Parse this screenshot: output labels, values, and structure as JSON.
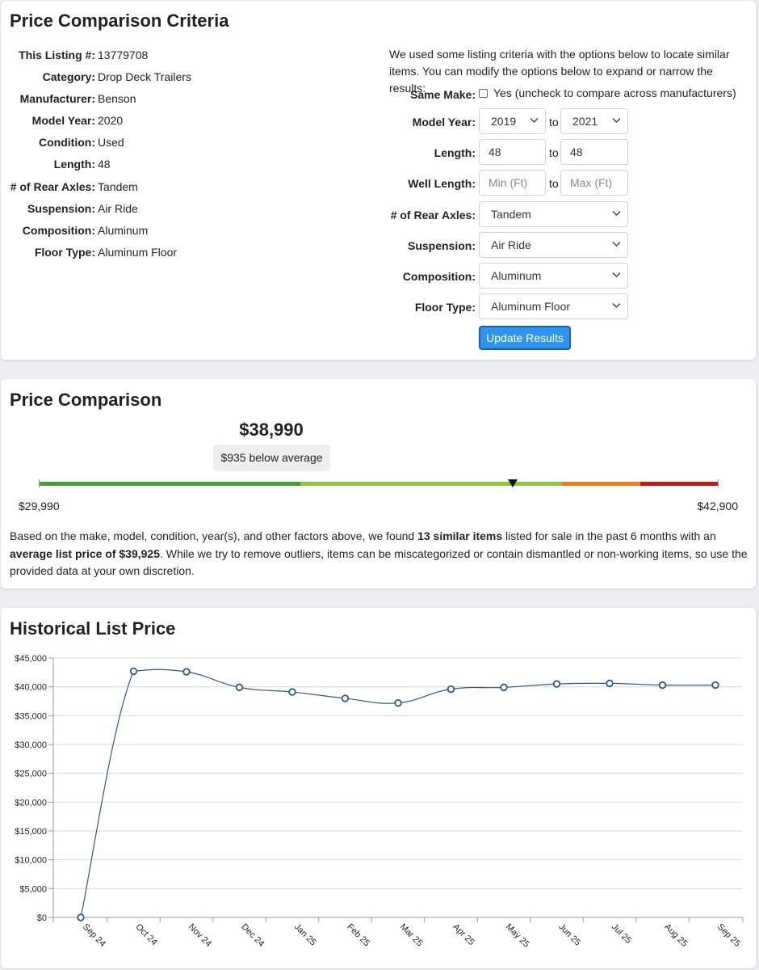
{
  "criteria": {
    "title": "Price Comparison Criteria",
    "listing": [
      {
        "label": "This Listing #:",
        "value": "13779708"
      },
      {
        "label": "Category:",
        "value": "Drop Deck Trailers"
      },
      {
        "label": "Manufacturer:",
        "value": "Benson"
      },
      {
        "label": "Model Year:",
        "value": "2020"
      },
      {
        "label": "Condition:",
        "value": "Used"
      },
      {
        "label": "Length:",
        "value": "48"
      },
      {
        "label": "# of Rear Axles:",
        "value": "Tandem"
      },
      {
        "label": "Suspension:",
        "value": "Air Ride"
      },
      {
        "label": "Composition:",
        "value": "Aluminum"
      },
      {
        "label": "Floor Type:",
        "value": "Aluminum Floor"
      }
    ],
    "intro": "We used some listing criteria with the options below to locate similar items. You can modify the options below to expand or narrow the results:",
    "form": {
      "same_make_label": "Same Make:",
      "same_make_checked": false,
      "same_make_text": "Yes (uncheck to compare across manufacturers)",
      "model_year_label": "Model Year:",
      "model_year_from": "2019",
      "model_year_to": "2021",
      "to_text": "to",
      "length_label": "Length:",
      "length_from": "48",
      "length_to": "48",
      "well_length_label": "Well Length:",
      "well_length_min_placeholder": "Min (Ft)",
      "well_length_max_placeholder": "Max (Ft)",
      "rear_axles_label": "# of Rear Axles:",
      "rear_axles_value": "Tandem",
      "suspension_label": "Suspension:",
      "suspension_value": "Air Ride",
      "composition_label": "Composition:",
      "composition_value": "Aluminum",
      "floor_type_label": "Floor Type:",
      "floor_type_value": "Aluminum Floor",
      "update_button": "Update Results"
    }
  },
  "comparison": {
    "title": "Price Comparison",
    "price": "$38,990",
    "badge": "$935 below average",
    "min_label": "$29,990",
    "max_label": "$42,900",
    "marker_fraction": 0.697,
    "bar_colors": [
      "#4a9b3b",
      "#8cc63f",
      "#ee7d1e",
      "#c21a1a"
    ],
    "text_1": "Based on the make, model, condition, year(s), and other factors above, we found ",
    "text_bold_1": "13 similar items",
    "text_2": " listed for sale in the past 6 months with an ",
    "text_bold_2": "average list price of $39,925",
    "text_3": ". While we try to remove outliers, items can be miscategorized or contain dismantled or non-working items, so use the provided data at your own discretion."
  },
  "history": {
    "title": "Historical List Price"
  },
  "chart_data": {
    "type": "line",
    "title": "Historical List Price",
    "categories": [
      "Sep 24",
      "Oct 24",
      "Nov 24",
      "Dec 24",
      "Jan 25",
      "Feb 25",
      "Mar 25",
      "Apr 25",
      "May 25",
      "Jun 25",
      "Jul 25",
      "Aug 25",
      "Sep 25"
    ],
    "values": [
      0,
      42700,
      42600,
      39900,
      39100,
      38000,
      37200,
      39600,
      39900,
      40500,
      40600,
      40300,
      40300
    ],
    "ylim": [
      0,
      45000
    ],
    "yticks": [
      "$0",
      "$5,000",
      "$10,000",
      "$15,000",
      "$20,000",
      "$25,000",
      "$30,000",
      "$35,000",
      "$40,000",
      "$45,000"
    ],
    "grid": true,
    "line_color": "#2c5a8a"
  }
}
